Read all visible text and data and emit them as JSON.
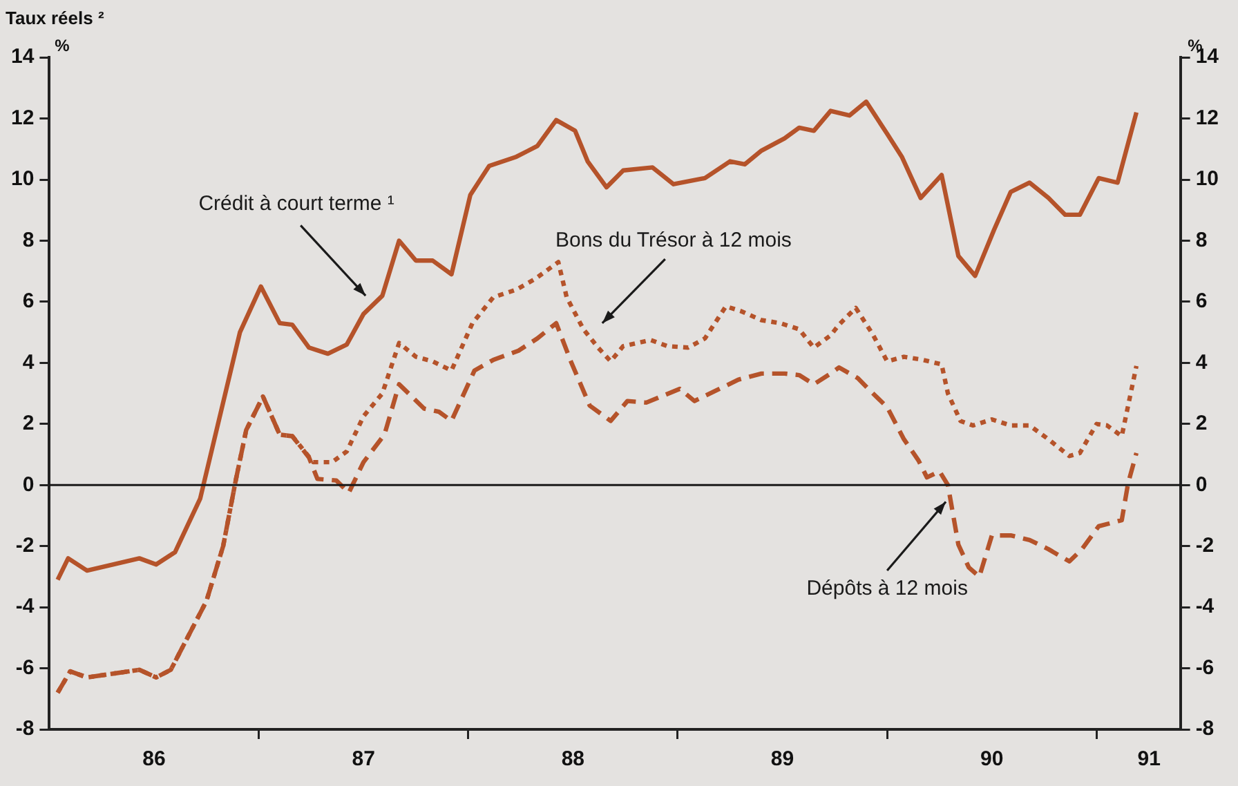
{
  "chart_data": {
    "type": "line",
    "title": "Taux réels ²",
    "ylabel": "%",
    "y2label": "%",
    "xlim": [
      85.5,
      90.9
    ],
    "xticks": [
      86,
      {
        "value": 86.5,
        "label": null
      },
      87,
      {
        "value": 87.5,
        "label": null
      },
      88,
      {
        "value": 88.5,
        "label": null
      },
      89,
      {
        "value": 89.5,
        "label": null
      },
      90,
      {
        "value": 90.5,
        "label": null
      },
      {
        "value": 90.75,
        "label": "91"
      }
    ],
    "ylim": [
      -8,
      14
    ],
    "yticks": [
      -8,
      -6,
      -4,
      -2,
      0,
      2,
      4,
      6,
      8,
      10,
      12,
      14
    ],
    "y2lim": [
      -8,
      14
    ],
    "y2ticks": [
      -8,
      -6,
      -4,
      -2,
      0,
      2,
      4,
      6,
      8,
      10,
      12,
      14
    ],
    "grid": false,
    "legend": false,
    "marker": "none",
    "ref_lines": [
      {
        "axis": "y",
        "value": 0,
        "color": "#1a1a1a"
      }
    ],
    "series": [
      {
        "name": "Crédit à court terme ¹",
        "color": "#b5532a",
        "line_style": "solid",
        "x": [
          85.54,
          85.59,
          85.68,
          85.93,
          86.01,
          86.1,
          86.22,
          86.41,
          86.51,
          86.6,
          86.66,
          86.74,
          86.83,
          86.92,
          87,
          87.09,
          87.17,
          87.25,
          87.33,
          87.42,
          87.51,
          87.6,
          87.73,
          87.83,
          87.92,
          88.01,
          88.07,
          88.16,
          88.24,
          88.38,
          88.48,
          88.63,
          88.75,
          88.82,
          88.9,
          89.01,
          89.08,
          89.15,
          89.23,
          89.32,
          89.4,
          89.5,
          89.57,
          89.66,
          89.76,
          89.84,
          89.92,
          90.01,
          90.09,
          90.18,
          90.27,
          90.35,
          90.42,
          90.51,
          90.6,
          90.69
        ],
        "values": [
          -3.1,
          -2.4,
          -2.8,
          -2.4,
          -2.6,
          -2.2,
          -0.45,
          5,
          6.5,
          5.3,
          5.25,
          4.5,
          4.3,
          4.6,
          5.6,
          6.2,
          8,
          7.35,
          7.35,
          6.9,
          9.5,
          10.45,
          10.75,
          11.1,
          11.95,
          11.6,
          10.6,
          9.75,
          10.3,
          10.4,
          9.85,
          10.05,
          10.6,
          10.5,
          10.95,
          11.35,
          11.7,
          11.6,
          12.25,
          12.1,
          12.55,
          11.5,
          10.75,
          9.4,
          10.15,
          7.5,
          6.85,
          8.35,
          9.6,
          9.9,
          9.4,
          8.85,
          8.85,
          10.05,
          9.9,
          12.2
        ]
      },
      {
        "name": "Bons du Trésor à 12 mois",
        "color": "#b5532a",
        "line_style": "dotted",
        "x": [
          85.54,
          85.6,
          85.68,
          85.93,
          86.01,
          86.08,
          86.25,
          86.33,
          86.39,
          86.44,
          86.52,
          86.6,
          86.66,
          86.76,
          86.85,
          86.92,
          87,
          87.09,
          87.17,
          87.25,
          87.33,
          87.42,
          87.52,
          87.62,
          87.73,
          87.82,
          87.93,
          87.97,
          88.05,
          88.12,
          88.18,
          88.24,
          88.37,
          88.45,
          88.55,
          88.63,
          88.73,
          88.8,
          88.9,
          88.99,
          89.08,
          89.15,
          89.23,
          89.27,
          89.35,
          89.43,
          89.5,
          89.58,
          89.67,
          89.76,
          89.79,
          89.85,
          89.91,
          90,
          90.09,
          90.18,
          90.27,
          90.37,
          90.42,
          90.5,
          90.55,
          90.62,
          90.69
        ],
        "values": [
          -6.8,
          -6.1,
          -6.3,
          -6.05,
          -6.3,
          -6.05,
          -3.8,
          -2,
          0.15,
          1.8,
          2.9,
          1.65,
          1.6,
          0.75,
          0.75,
          1.1,
          2.25,
          3,
          4.65,
          4.2,
          4.05,
          3.75,
          5.3,
          6.15,
          6.4,
          6.75,
          7.3,
          6.15,
          5.1,
          4.5,
          4.05,
          4.55,
          4.75,
          4.55,
          4.5,
          4.8,
          5.85,
          5.7,
          5.4,
          5.3,
          5.1,
          4.5,
          4.9,
          5.25,
          5.8,
          4.95,
          4.05,
          4.2,
          4.1,
          3.95,
          3,
          2.1,
          1.95,
          2.15,
          1.95,
          1.95,
          1.5,
          0.95,
          1.05,
          2,
          1.95,
          1.6,
          3.9
        ]
      },
      {
        "name": "Dépôts à 12 mois",
        "color": "#b5532a",
        "line_style": "dashed",
        "x": [
          85.54,
          85.6,
          85.68,
          85.93,
          86.01,
          86.08,
          86.25,
          86.33,
          86.39,
          86.44,
          86.52,
          86.6,
          86.66,
          86.74,
          86.78,
          86.87,
          86.93,
          87,
          87.1,
          87.17,
          87.29,
          87.36,
          87.42,
          87.53,
          87.62,
          87.74,
          87.83,
          87.92,
          87.99,
          88.08,
          88.18,
          88.26,
          88.35,
          88.51,
          88.58,
          88.7,
          88.79,
          88.9,
          89.01,
          89.08,
          89.15,
          89.23,
          89.27,
          89.36,
          89.41,
          89.5,
          89.58,
          89.65,
          89.69,
          89.75,
          89.79,
          89.84,
          89.89,
          89.94,
          90,
          90.09,
          90.18,
          90.27,
          90.37,
          90.43,
          90.51,
          90.62,
          90.65,
          90.69
        ],
        "values": [
          -6.8,
          -6.1,
          -6.3,
          -6.05,
          -6.3,
          -6.05,
          -3.8,
          -2,
          0.15,
          1.8,
          2.9,
          1.65,
          1.6,
          0.9,
          0.2,
          0.15,
          -0.25,
          0.75,
          1.65,
          3.3,
          2.5,
          2.4,
          2.1,
          3.75,
          4.1,
          4.4,
          4.8,
          5.3,
          4.05,
          2.6,
          2.1,
          2.75,
          2.7,
          3.15,
          2.75,
          3.15,
          3.45,
          3.65,
          3.65,
          3.6,
          3.3,
          3.65,
          3.85,
          3.5,
          3.15,
          2.55,
          1.5,
          0.8,
          0.25,
          0.45,
          0,
          -1.95,
          -2.7,
          -3,
          -1.65,
          -1.65,
          -1.8,
          -2.1,
          -2.5,
          -2.1,
          -1.35,
          -1.15,
          0.05,
          1.05
        ]
      }
    ]
  }
}
